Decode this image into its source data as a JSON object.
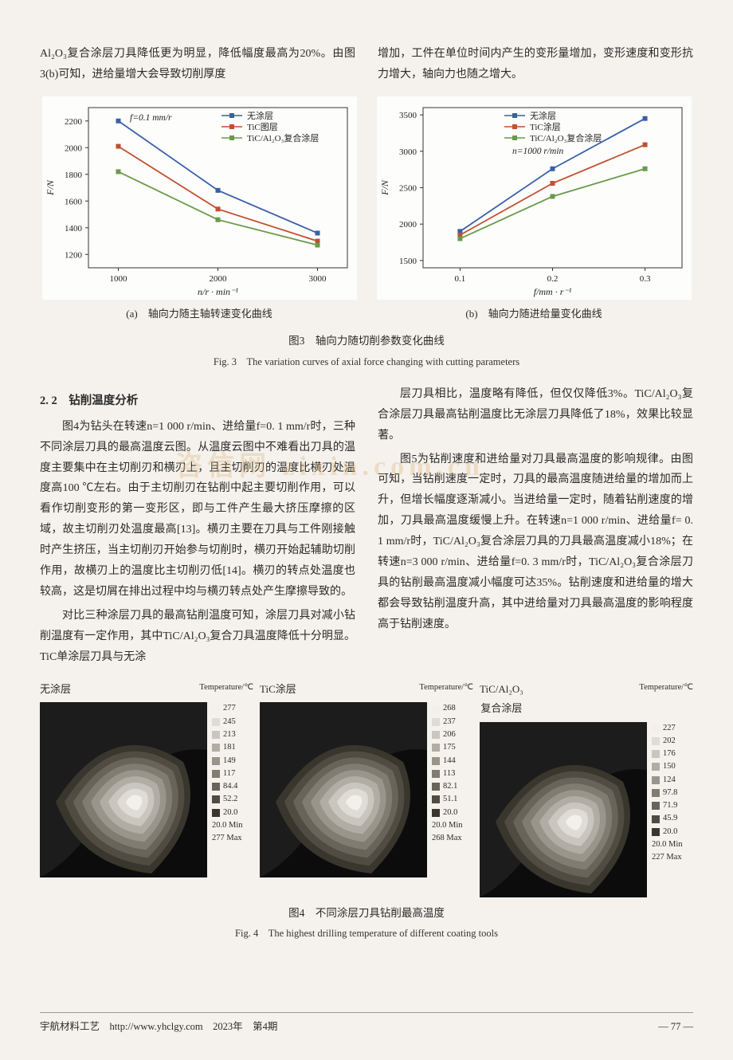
{
  "top": {
    "left_p": "Al₂O₃复合涂层刀具降低更为明显，降低幅度最高为20%。由图3(b)可知，进给量增大会导致切削厚度",
    "right_p": "增加，工件在单位时间内产生的变形量增加，变形速度和变形抗力增大，轴向力也随之增大。"
  },
  "fig3": {
    "a": {
      "type": "line",
      "annot": "f=0.1 mm/r",
      "legend": [
        "无涂层",
        "TiC图层",
        "TiC/Al₂O₃复合涂层"
      ],
      "x": [
        1000,
        2000,
        3000
      ],
      "xlabel": "n/r · min⁻¹",
      "ylabel": "F/N",
      "ylim": [
        1100,
        2300
      ],
      "yticks": [
        1200,
        1400,
        1600,
        1800,
        2000,
        2200
      ],
      "xlim": [
        700,
        3300
      ],
      "series": [
        {
          "color": "#3a5fa8",
          "y": [
            2200,
            1680,
            1360
          ]
        },
        {
          "color": "#c05030",
          "y": [
            2010,
            1540,
            1300
          ]
        },
        {
          "color": "#6a9a4a",
          "y": [
            1820,
            1460,
            1270
          ]
        }
      ],
      "subcap": "(a)　轴向力随主轴转速变化曲线",
      "bg": "#fdfdfb",
      "axis_color": "#333"
    },
    "b": {
      "type": "line",
      "annot": "n=1000 r/min",
      "legend": [
        "无涂层",
        "TiC涂层",
        "TiC/Al₂O₃复合涂层"
      ],
      "x": [
        0.1,
        0.2,
        0.3
      ],
      "xlabel": "f/mm · r⁻¹",
      "ylabel": "F/N",
      "ylim": [
        1400,
        3600
      ],
      "yticks": [
        1500,
        2000,
        2500,
        3000,
        3500
      ],
      "xlim": [
        0.06,
        0.34
      ],
      "series": [
        {
          "color": "#3a5fa8",
          "y": [
            1900,
            2760,
            3450
          ]
        },
        {
          "color": "#c05030",
          "y": [
            1850,
            2560,
            3090
          ]
        },
        {
          "color": "#6a9a4a",
          "y": [
            1800,
            2380,
            2760
          ]
        }
      ],
      "subcap": "(b)　轴向力随进给量变化曲线",
      "bg": "#fdfdfb",
      "axis_color": "#333"
    },
    "caption": "图3　轴向力随切削参数变化曲线",
    "caption_en": "Fig. 3　The variation curves of axial force changing with cutting parameters"
  },
  "section22": {
    "heading": "2. 2　钻削温度分析",
    "left": [
      "图4为钻头在转速n=1 000 r/min、进给量f=0. 1 mm/r时，三种不同涂层刀具的最高温度云图。从温度云图中不难看出刀具的温度主要集中在主切削刃和横刃上，且主切削刃的温度比横刃处温度高100 ℃左右。由于主切削刃在钻削中起主要切削作用，可以看作切削变形的第一变形区，即与工件产生最大挤压摩擦的区域，故主切削刃处温度最高[13]。横刃主要在刀具与工件刚接触时产生挤压，当主切削刃开始参与切削时，横刃开始起辅助切削作用，故横刃上的温度比主切削刃低[14]。横刃的转点处温度也较高，这是切屑在排出过程中均与横刃转点处产生摩擦导致的。",
      "对比三种涂层刀具的最高钻削温度可知，涂层刀具对减小钻削温度有一定作用，其中TiC/Al₂O₃复合刀具温度降低十分明显。TiC单涂层刀具与无涂"
    ],
    "right": [
      "层刀具相比，温度略有降低，但仅仅降低3%。TiC/Al₂O₃复合涂层刀具最高钻削温度比无涂层刀具降低了18%，效果比较显著。",
      "图5为钻削速度和进给量对刀具最高温度的影响规律。由图可知，当钻削速度一定时，刀具的最高温度随进给量的增加而上升，但增长幅度逐渐减小。当进给量一定时，随着钻削速度的增加，刀具最高温度缓慢上升。在转速n=1 000 r/min、进给量f= 0. 1 mm/r时，TiC/Al₂O₃复合涂层刀具的刀具最高温度减小18%；在转速n=3 000 r/min、进给量f=0. 3 mm/r时，TiC/Al₂O₃复合涂层刀具的钻削最高温度减小幅度可达35%。钻削速度和进给量的增大都会导致钻削温度升高，其中进给量对刀具最高温度的影响程度高于钻削速度。"
    ]
  },
  "fig4": {
    "titles": [
      "无涂层",
      "TiC涂层",
      "TiC/Al₂O₃\n复合涂层"
    ],
    "scale_label": "Temperature/℃",
    "contour_colors": [
      "#f2f0eb",
      "#dfdcd5",
      "#c9c6be",
      "#b1ada4",
      "#99958b",
      "#807c72",
      "#686459",
      "#504c42",
      "#39362d"
    ],
    "scales": [
      {
        "vals": [
          "277",
          "245",
          "213",
          "181",
          "149",
          "117",
          "84.4",
          "52.2",
          "20.0",
          "20.0  Min",
          "277 Max"
        ]
      },
      {
        "vals": [
          "268",
          "237",
          "206",
          "175",
          "144",
          "113",
          "82.1",
          "51.1",
          "20.0",
          "20.0  Min",
          "268 Max"
        ]
      },
      {
        "vals": [
          "227",
          "202",
          "176",
          "150",
          "124",
          "97.8",
          "71.9",
          "45.9",
          "20.0",
          "20.0  Min",
          "227 Max"
        ]
      }
    ],
    "caption": "图4　不同涂层刀具钻削最高温度",
    "caption_en": "Fig. 4　The highest drilling temperature of different coating tools"
  },
  "watermark": "咨信网  zixin.com.cn",
  "footer": {
    "left": "宇航材料工艺　http://www.yhclgy.com　2023年　第4期",
    "right": "— 77 —"
  }
}
